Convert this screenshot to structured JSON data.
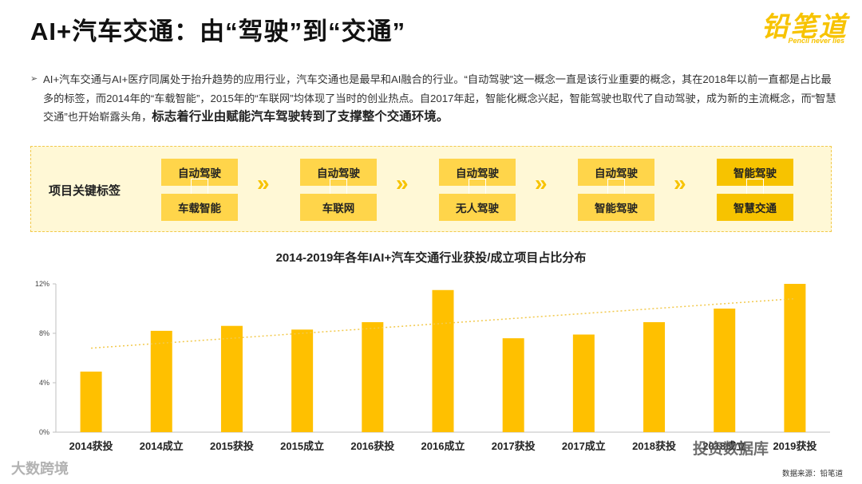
{
  "header": {
    "title": "AI+汽车交通：由“驾驶”到“交通”",
    "logo_main": "铅笔道",
    "logo_sub": "Pencil never lies"
  },
  "intro": {
    "bullet": "➢",
    "text": "AI+汽车交通与AI+医疗同属处于抬升趋势的应用行业，汽车交通也是最早和AI融合的行业。“自动驾驶”这一概念一直是该行业重要的概念，其在2018年以前一直都是占比最多的标签，而2014年的“车载智能”，2015年的“车联网”均体现了当时的创业热点。自2017年起，智能化概念兴起，智能驾驶也取代了自动驾驶，成为新的主流概念，而“智慧交通”也开始崭露头角，",
    "bold_text": "标志着行业由赋能汽车驾驶转到了支撑整个交通环境。"
  },
  "tags": {
    "label": "项目关键标签",
    "groups": [
      {
        "top": "自动驾驶",
        "bottom": "车载智能"
      },
      {
        "top": "自动驾驶",
        "bottom": "车联网"
      },
      {
        "top": "自动驾驶",
        "bottom": "无人驾驶"
      },
      {
        "top": "自动驾驶",
        "bottom": "智能驾驶"
      },
      {
        "top": "智能驾驶",
        "bottom": "智慧交通"
      }
    ],
    "arrow_glyph": "»"
  },
  "chart_data": {
    "type": "bar",
    "title": "2014-2019年各年IAI+汽车交通行业获投/成立项目占比分布",
    "categories": [
      "2014获投",
      "2014成立",
      "2015获投",
      "2015成立",
      "2016获投",
      "2016成立",
      "2017获投",
      "2017成立",
      "2018获投",
      "2018成立",
      "2019获投"
    ],
    "values": [
      4.9,
      8.2,
      8.6,
      8.3,
      8.9,
      11.5,
      7.6,
      7.9,
      8.9,
      10.0,
      12.0
    ],
    "yticks": [
      "0%",
      "4%",
      "8%",
      "12%"
    ],
    "ylim": [
      0,
      12
    ],
    "trendline": {
      "start": 6.8,
      "end": 10.8
    },
    "bar_color": "#ffc000",
    "trend_color": "#f2c94c"
  },
  "watermarks": {
    "left": "大数跨境",
    "right": "投资数据库"
  },
  "source": "数据来源：铅笔道"
}
